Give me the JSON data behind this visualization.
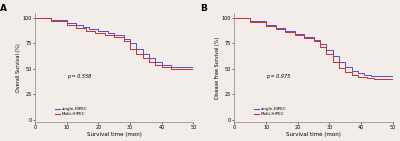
{
  "panel_A": {
    "title": "A",
    "ylabel": "Overall Survival (%)",
    "xlabel": "Survival time (mon)",
    "pvalue": "p = 0.558",
    "xlim": [
      0,
      50
    ],
    "ylim": [
      -2,
      105
    ],
    "yticks": [
      0,
      25,
      50,
      75,
      100
    ],
    "xticks": [
      0,
      10,
      20,
      30,
      40,
      50
    ],
    "single_x": [
      0,
      5,
      5,
      10,
      10,
      13,
      13,
      15,
      15,
      17,
      17,
      20,
      20,
      23,
      23,
      25,
      25,
      28,
      28,
      30,
      30,
      32,
      32,
      34,
      34,
      36,
      36,
      38,
      38,
      40,
      40,
      43,
      43,
      50
    ],
    "single_y": [
      100,
      100,
      98,
      98,
      95,
      95,
      93,
      93,
      91,
      91,
      89,
      89,
      87,
      87,
      85,
      85,
      83,
      83,
      79,
      79,
      75,
      75,
      70,
      70,
      65,
      65,
      61,
      61,
      57,
      57,
      54,
      54,
      52,
      52
    ],
    "multi_x": [
      0,
      5,
      5,
      10,
      10,
      13,
      13,
      16,
      16,
      19,
      19,
      22,
      22,
      25,
      25,
      28,
      28,
      30,
      30,
      32,
      32,
      34,
      34,
      36,
      36,
      38,
      38,
      40,
      40,
      43,
      43,
      50
    ],
    "multi_y": [
      100,
      100,
      97,
      97,
      93,
      93,
      90,
      90,
      87,
      87,
      85,
      85,
      83,
      83,
      81,
      81,
      77,
      77,
      70,
      70,
      65,
      65,
      61,
      61,
      57,
      57,
      54,
      54,
      52,
      52,
      50,
      50
    ],
    "single_color": "#5050cc",
    "multi_color": "#cc3030"
  },
  "panel_B": {
    "title": "B",
    "ylabel": "Disease Free Survival (%)",
    "xlabel": "Survival time (mon)",
    "pvalue": "p = 0.975",
    "xlim": [
      0,
      50
    ],
    "ylim": [
      -2,
      105
    ],
    "yticks": [
      0,
      25,
      50,
      75,
      100
    ],
    "xticks": [
      0,
      10,
      20,
      30,
      40,
      50
    ],
    "single_x": [
      0,
      5,
      5,
      10,
      10,
      13,
      13,
      16,
      16,
      19,
      19,
      22,
      22,
      25,
      25,
      27,
      27,
      29,
      29,
      31,
      31,
      33,
      33,
      35,
      35,
      37,
      37,
      39,
      39,
      41,
      41,
      43,
      43,
      50
    ],
    "single_y": [
      100,
      100,
      97,
      97,
      93,
      93,
      90,
      90,
      87,
      87,
      84,
      84,
      81,
      81,
      78,
      78,
      74,
      74,
      69,
      69,
      63,
      63,
      57,
      57,
      52,
      52,
      48,
      48,
      46,
      46,
      44,
      44,
      43,
      43
    ],
    "multi_x": [
      0,
      5,
      5,
      10,
      10,
      13,
      13,
      16,
      16,
      19,
      19,
      22,
      22,
      25,
      25,
      27,
      27,
      29,
      29,
      31,
      31,
      33,
      33,
      35,
      35,
      37,
      37,
      39,
      39,
      42,
      42,
      44,
      44,
      50
    ],
    "multi_y": [
      100,
      100,
      96,
      96,
      92,
      92,
      89,
      89,
      86,
      86,
      83,
      83,
      80,
      80,
      77,
      77,
      72,
      72,
      65,
      65,
      57,
      57,
      51,
      51,
      47,
      47,
      44,
      44,
      42,
      42,
      41,
      41,
      40,
      40
    ],
    "single_color": "#5050cc",
    "multi_color": "#cc3030"
  },
  "legend_single": "single-HIPEC",
  "legend_multi": "Multi-HIPEC",
  "background_color": "#f2ede9",
  "plot_bg": "#f2ede9"
}
